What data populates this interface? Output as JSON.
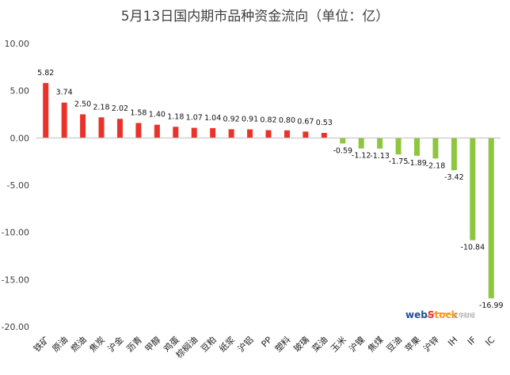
{
  "chart_data": {
    "type": "bar",
    "title": "5月13日国内期市品种资金流向（单位：亿）",
    "xlabel": "",
    "ylabel": "",
    "categories": [
      "铁矿",
      "原油",
      "燃油",
      "焦炭",
      "沪金",
      "沥青",
      "甲醇",
      "鸡蛋",
      "棕榈油",
      "豆粕",
      "纸浆",
      "沪铝",
      "PP",
      "塑料",
      "玻璃",
      "菜油",
      "玉米",
      "沪镍",
      "焦煤",
      "豆油",
      "苹果",
      "沪锌",
      "IH",
      "IF",
      "IC"
    ],
    "values": [
      5.82,
      3.74,
      2.5,
      2.18,
      2.02,
      1.58,
      1.4,
      1.18,
      1.07,
      1.04,
      0.92,
      0.91,
      0.82,
      0.8,
      0.67,
      0.53,
      -0.59,
      -1.12,
      -1.13,
      -1.75,
      -1.89,
      -2.18,
      -3.42,
      -10.84,
      -16.99
    ],
    "data_labels": [
      "5.82",
      "3.74",
      "2.50",
      "2.18",
      "2.02",
      "1.58",
      "1.40",
      "1.18",
      "1.07",
      "1.04",
      "0.92",
      "0.91",
      "0.82",
      "0.80",
      "0.67",
      "0.53",
      "-0.59",
      "-1.12",
      "-1.13",
      "-1.75",
      "-1.89",
      "-2.18",
      "-3.42",
      "-10.84",
      "-16.99"
    ],
    "ylim": [
      -20,
      10
    ],
    "yticks": [
      10,
      5,
      0,
      -5,
      -10,
      -15,
      -20
    ],
    "ytick_labels": [
      "10.00",
      "5.00",
      "0.00",
      "-5.00",
      "-10.00",
      "-15.00",
      "-20.00"
    ],
    "grid": false,
    "legend": "none",
    "colors": {
      "positive": "#e8322a",
      "negative": "#8dc63f",
      "axis": "#bfbfbf",
      "title": "#404040"
    }
  },
  "watermark": {
    "brand_parts": [
      "web",
      "S",
      "tock"
    ],
    "sub": "文华财经",
    "colors": {
      "web": "#1f4e9a",
      "s": "#e8322a",
      "tock": "#f29a1d"
    }
  }
}
